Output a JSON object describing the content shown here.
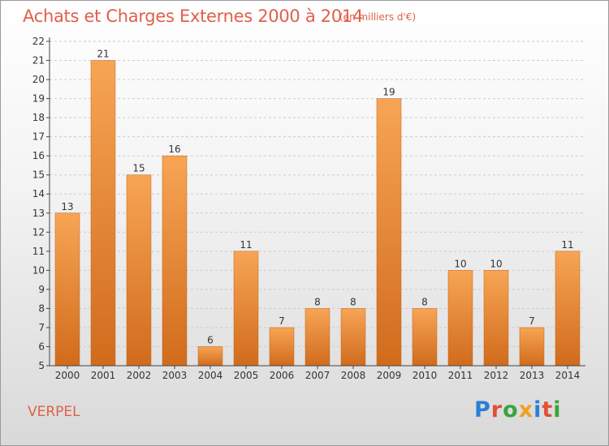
{
  "header": {
    "title": "Achats et Charges Externes 2000 à 2014",
    "unit": "(en milliers d'€)"
  },
  "footer": {
    "commune": "VERPEL",
    "brand": "Proxiti"
  },
  "colors": {
    "bar_top": "#f7a555",
    "bar_bottom": "#d16b1c",
    "text": "#e0604a",
    "axis": "#444444",
    "grid": "#cccccc"
  },
  "brand_colors": [
    "#2a7fd4",
    "#e0503a",
    "#3aa43a",
    "#f0a020",
    "#2a7fd4",
    "#e0503a",
    "#3aa43a"
  ],
  "chart_data": {
    "type": "bar",
    "categories": [
      "2000",
      "2001",
      "2002",
      "2003",
      "2004",
      "2005",
      "2006",
      "2007",
      "2008",
      "2009",
      "2010",
      "2011",
      "2012",
      "2013",
      "2014"
    ],
    "values": [
      13,
      21,
      15,
      16,
      6,
      11,
      7,
      8,
      8,
      19,
      8,
      10,
      10,
      7,
      11
    ],
    "ylim": [
      5,
      22
    ],
    "yticks": [
      5,
      6,
      7,
      8,
      9,
      10,
      11,
      12,
      13,
      14,
      15,
      16,
      17,
      18,
      19,
      20,
      21,
      22
    ],
    "grid": true
  }
}
